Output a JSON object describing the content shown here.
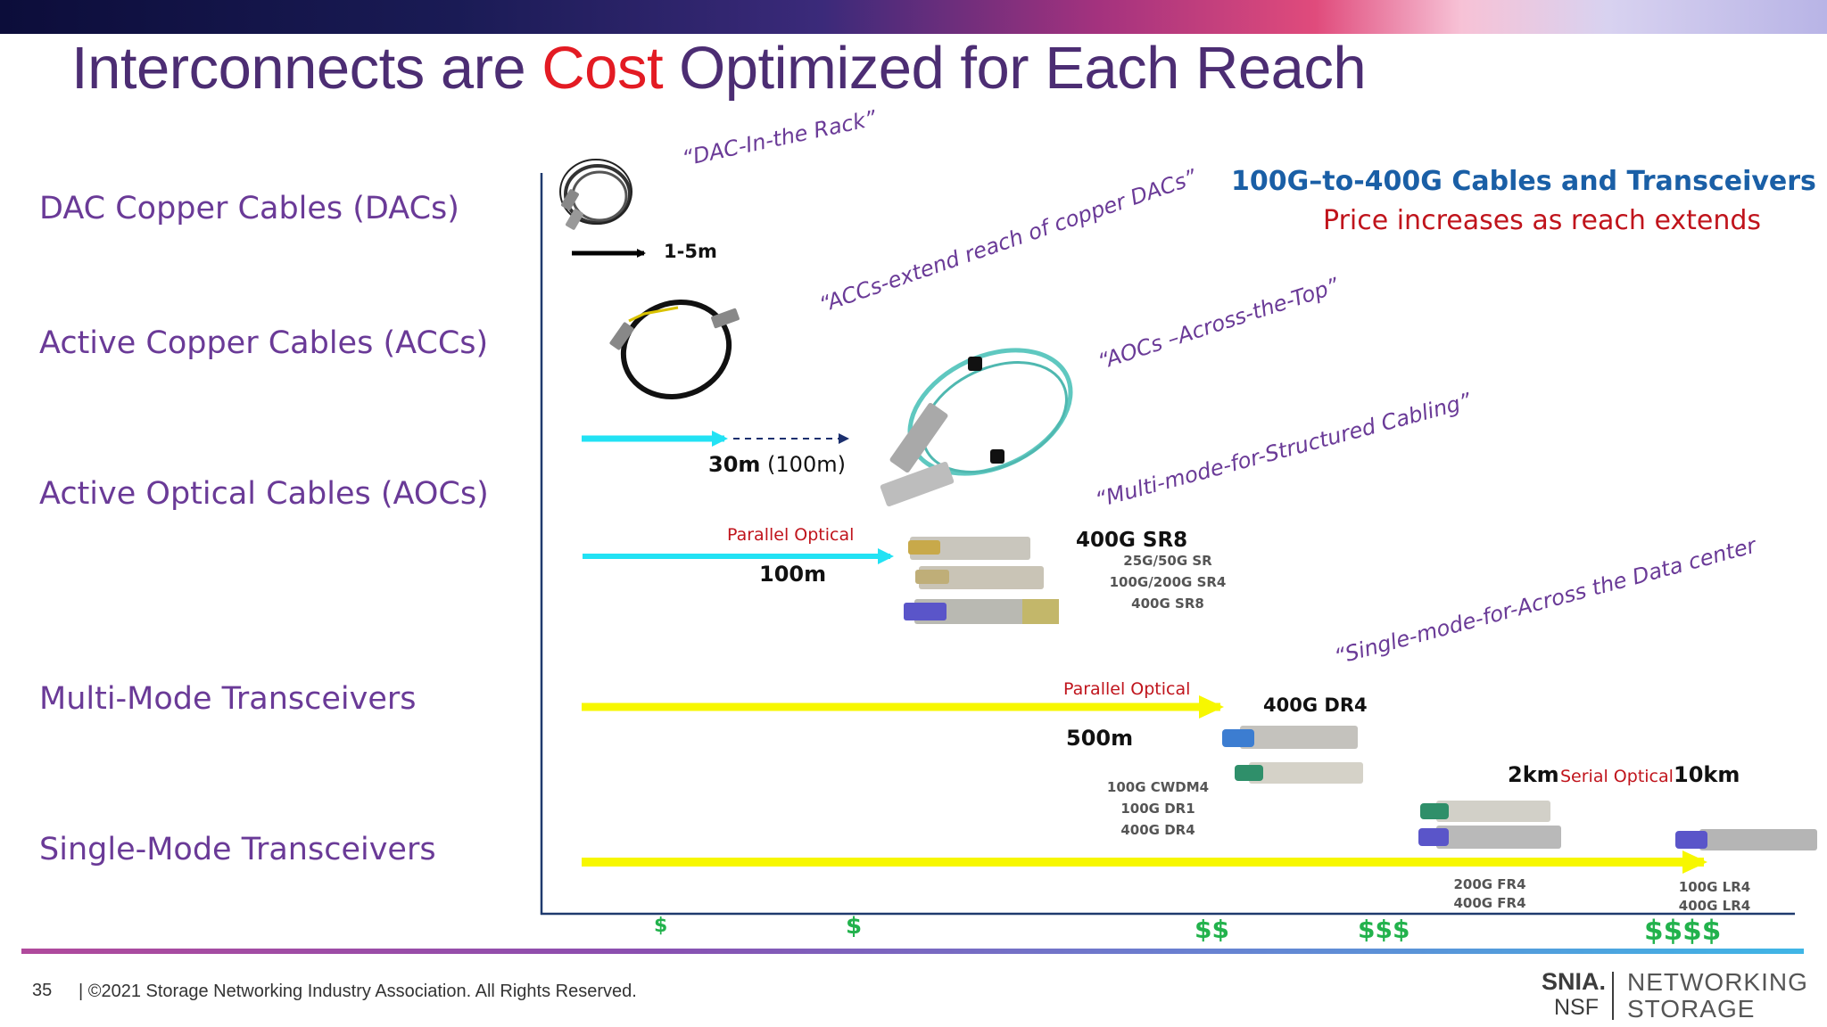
{
  "title": {
    "part1": "Interconnects are ",
    "highlight": "Cost",
    "part2": " Optimized for Each Reach"
  },
  "categories": [
    "DAC Copper Cables (DACs)",
    "Active Copper Cables (ACCs)",
    "Active Optical Cables (AOCs)",
    "Multi-Mode Transceivers",
    "Single-Mode Transceivers"
  ],
  "quotes": {
    "dac": "“DAC-In-the Rack”",
    "acc": "“ACCs-extend reach of copper DACs”",
    "aoc": "“AOCs –Across-the-Top”",
    "mm": "“Multi-mode-for-Structured Cabling”",
    "sm": "“Single-mode-for-Across the Data center"
  },
  "legend": {
    "line1": "100G–to-400G Cables and Transceivers",
    "line2": "Price increases as reach extends"
  },
  "reach": {
    "dac": "1-5m",
    "aoc_bold": "30m",
    "aoc_extra": " (100m)",
    "mm": "100m",
    "dr": "500m",
    "km2": "2km",
    "km10": "10km"
  },
  "parallel_optical": "Parallel Optical",
  "serial_optical": "Serial Optical",
  "sr8": {
    "heading": "400G SR8",
    "lines": [
      "25G/50G SR",
      "100G/200G SR4",
      "400G SR8"
    ]
  },
  "dr4": {
    "heading": "400G DR4",
    "lines": [
      "100G CWDM4",
      "100G DR1",
      "400G DR4"
    ]
  },
  "fr4": {
    "lines": [
      "200G FR4",
      "400G FR4"
    ]
  },
  "lr4": {
    "lines": [
      "100G LR4",
      "400G LR4"
    ]
  },
  "costs": [
    "$",
    "$",
    "$$",
    "$$$",
    "$$$$"
  ],
  "colors": {
    "cyan": "#22e2f4",
    "yellow": "#f7f700",
    "green": "#22b24c",
    "purple": "#6a3a97",
    "red": "#e31b23",
    "blue": "#1a5fa6"
  },
  "footer": {
    "page": "35",
    "copyright": "| ©2021 Storage Networking Industry Association. All Rights Reserved."
  },
  "logo": {
    "snia": "SNIA.",
    "nsf": "NSF",
    "networking": "NETWORKING",
    "storage": "STORAGE"
  }
}
